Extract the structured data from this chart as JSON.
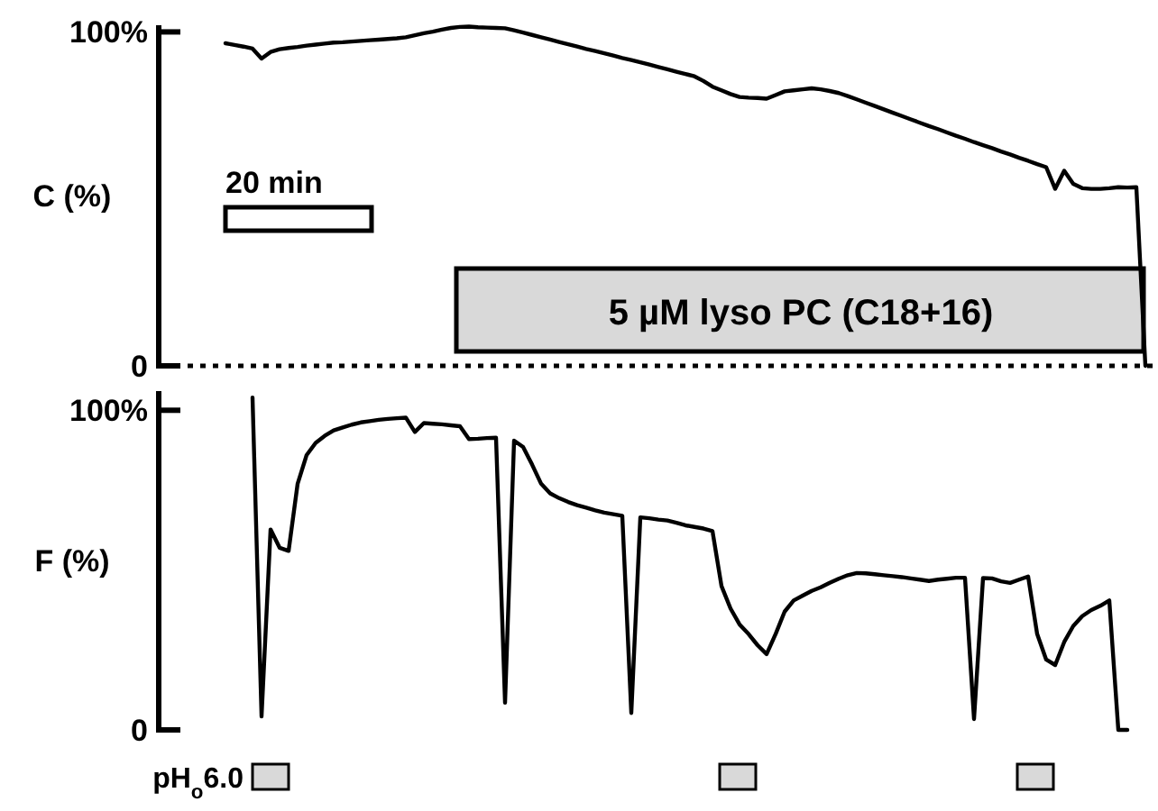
{
  "chart_data": [
    {
      "type": "line",
      "ylabel": "C (%)",
      "ylim": [
        0,
        102
      ],
      "yticks": [
        0,
        {
          "value": 100,
          "label": "100%"
        }
      ],
      "tick_labels": "y",
      "line_style": "solid",
      "categories": [
        null,
        null,
        null,
        null,
        null,
        null,
        null,
        null,
        null,
        null,
        null,
        null,
        null,
        null,
        null,
        null,
        null,
        null,
        null,
        null,
        null,
        null,
        null,
        null,
        null,
        null,
        null,
        null,
        null,
        null,
        null,
        null,
        null,
        null,
        null,
        null,
        null,
        null,
        null,
        null,
        null,
        null,
        null,
        null,
        null,
        null,
        null,
        null,
        null,
        null,
        null,
        null,
        null,
        null,
        null,
        null,
        null,
        null,
        null,
        null,
        null,
        null,
        null,
        null,
        null,
        null,
        null,
        null,
        null,
        null,
        null,
        null,
        null,
        null,
        null,
        null,
        null,
        null,
        null,
        null,
        null,
        null,
        null,
        null,
        null,
        null,
        null,
        null,
        null,
        null,
        null,
        null,
        null,
        null,
        null,
        null,
        null,
        null,
        null,
        null,
        null,
        null,
        null,
        null,
        null,
        null,
        null,
        null,
        null
      ],
      "series": [
        {
          "color": "#000000",
          "values": [
            null,
            null,
            null,
            null,
            null,
            96.6,
            96.1,
            95.6,
            95.0,
            92,
            94,
            94.8,
            95.2,
            95.5,
            95.9,
            96.2,
            96.5,
            96.8,
            96.9,
            97.1,
            97.3,
            97.5,
            97.7,
            97.9,
            98.1,
            98.4,
            99.0,
            99.6,
            100.1,
            100.7,
            101.2,
            101.5,
            101.6,
            101.4,
            101.3,
            101.2,
            101.1,
            100.5,
            99.8,
            99.1,
            98.4,
            97.7,
            97.0,
            96.3,
            95.6,
            94.9,
            94.3,
            93.6,
            92.9,
            92.2,
            91.6,
            90.9,
            90.2,
            89.5,
            88.8,
            88.1,
            87.4,
            86.7,
            85.3,
            83.6,
            82.5,
            81.4,
            80.5,
            80.3,
            80.2,
            80.0,
            81.1,
            82.2,
            82.5,
            82.8,
            83.1,
            82.8,
            82.3,
            81.7,
            80.8,
            79.8,
            78.8,
            77.8,
            76.8,
            75.8,
            74.8,
            73.8,
            72.8,
            71.8,
            70.9,
            69.9,
            68.9,
            68.0,
            67.0,
            66.1,
            65.2,
            64.2,
            63.3,
            62.3,
            61.4,
            60.4,
            59.5,
            53,
            58.4,
            54.5,
            53.2,
            53.0,
            53.0,
            53.2,
            53.5,
            53.4,
            53.5,
            0,
            null
          ]
        }
      ],
      "ref_lines": [
        {
          "axis": "y",
          "value": 0,
          "line_style": "dotted",
          "color": "#000000"
        }
      ],
      "annotations": [
        "20 min",
        "5 µM lyso PC (C18+16)"
      ]
    },
    {
      "type": "line",
      "ylabel": "F (%)",
      "ylim": [
        0,
        106
      ],
      "yticks": [
        0,
        {
          "value": 100,
          "label": "100%"
        }
      ],
      "tick_labels": "y",
      "line_style": "solid",
      "categories": [
        null,
        null,
        null,
        null,
        null,
        null,
        null,
        null,
        null,
        null,
        null,
        null,
        null,
        null,
        null,
        null,
        null,
        null,
        null,
        null,
        null,
        null,
        null,
        null,
        null,
        null,
        null,
        null,
        null,
        null,
        null,
        null,
        null,
        null,
        null,
        null,
        null,
        null,
        null,
        null,
        null,
        null,
        null,
        null,
        null,
        null,
        null,
        null,
        null,
        null,
        null,
        null,
        null,
        null,
        null,
        null,
        null,
        null,
        null,
        null,
        null,
        null,
        null,
        null,
        null,
        null,
        null,
        null,
        null,
        null,
        null,
        null,
        null,
        null,
        null,
        null,
        null,
        null,
        null,
        null,
        null,
        null,
        null,
        null,
        null,
        null,
        null,
        null,
        null,
        null,
        null,
        null,
        null,
        null,
        null,
        null,
        null,
        null,
        null,
        null,
        null,
        null,
        null,
        null,
        null,
        null,
        null,
        null,
        null
      ],
      "series": [
        {
          "color": "#000000",
          "values": [
            null,
            null,
            null,
            null,
            null,
            null,
            null,
            null,
            104,
            4.2,
            62.7,
            57,
            56,
            77,
            86,
            89.8,
            92,
            93.7,
            94.6,
            95.5,
            96.2,
            96.6,
            97,
            97.3,
            97.5,
            97.7,
            93.2,
            96,
            95.8,
            95.6,
            95.3,
            95,
            91,
            91.1,
            91.3,
            91.4,
            8.5,
            90.5,
            88.5,
            83,
            77,
            74,
            72.5,
            71.3,
            70.3,
            69.5,
            68.7,
            68,
            67.5,
            67,
            5.3,
            66.5,
            66.2,
            65.8,
            65.5,
            64.8,
            64,
            63.5,
            63,
            62.2,
            45,
            38,
            33,
            30,
            26.5,
            23.7,
            30,
            37,
            40.5,
            42,
            43.5,
            44.6,
            46,
            47.3,
            48.4,
            49.1,
            49,
            48.7,
            48.4,
            48.1,
            47.8,
            47.4,
            47,
            46.6,
            47,
            47.3,
            47.6,
            47.6,
            3.4,
            47.5,
            47.4,
            46.5,
            46,
            47,
            48,
            30,
            22,
            20.3,
            27.5,
            32.5,
            35.6,
            37.5,
            38.8,
            40.5,
            0,
            0,
            null,
            null,
            null
          ]
        }
      ],
      "annotations": [
        "pH$_{o}$6.0"
      ]
    }
  ]
}
